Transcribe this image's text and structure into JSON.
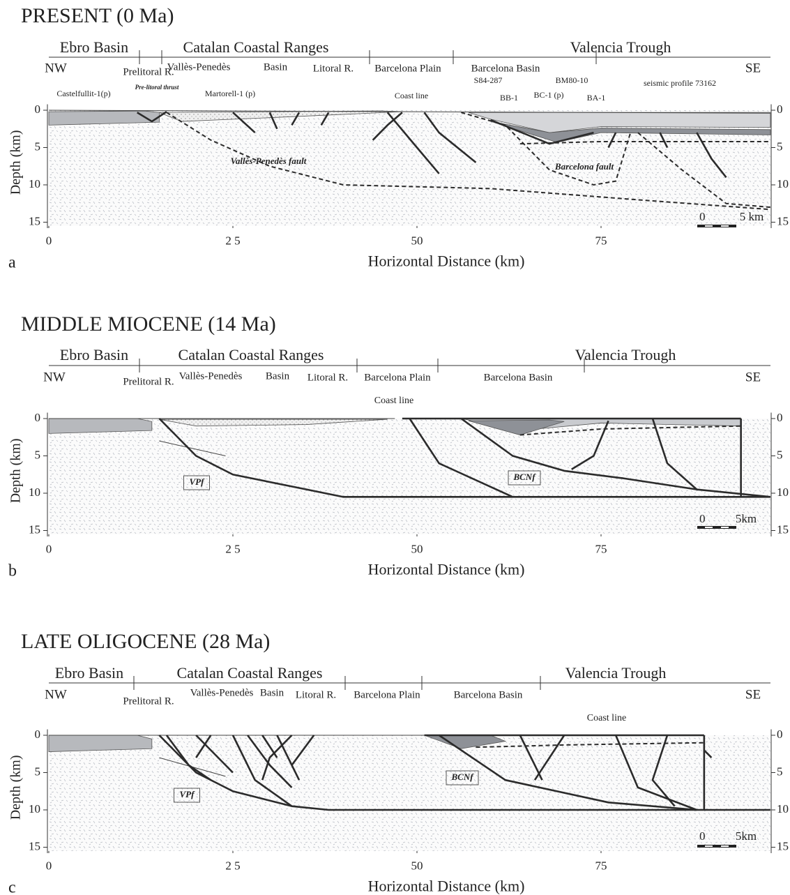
{
  "panels": [
    {
      "label": "a",
      "title": "PRESENT  (0 Ma)",
      "regions": [
        "Ebro Basin",
        "Catalan  Coastal   Ranges",
        "Valencia Trough"
      ],
      "subregions": [
        "NW",
        "Prelitoral R.",
        "Vallès-Penedès",
        "Basin",
        "Litoral R.",
        "Barcelona  Plain",
        "Barcelona   Basin",
        "SE"
      ],
      "annotations": [
        "Castelfullit-1(p)",
        "Pre-litoral thrust",
        "Martorell-1 (p)",
        "Coast  line",
        "S84-287",
        "BM80-10",
        "seismic  profile 73162",
        "BB-1",
        "BC-1 (p)",
        "BA-1",
        "Vallès-Penedès fault",
        "Barcelona fault"
      ],
      "scale_bar": [
        "0",
        "5 km"
      ],
      "y_axis_title": "Depth (km)",
      "x_axis_title": "Horizontal Distance (km)",
      "yticks": [
        0,
        5,
        10,
        15
      ],
      "xticks": [
        0,
        {
          "value": 25,
          "label": "2 5"
        },
        50,
        75
      ]
    },
    {
      "label": "b",
      "title": "MIDDLE MIOCENE (14 Ma)",
      "regions": [
        "Ebro Basin",
        "Catalan  Coastal   Ranges",
        "Valencia Trough"
      ],
      "subregions": [
        "NW",
        "Prelitoral R.",
        "Vallès-Penedès",
        "Basin",
        "Litoral R.",
        "Barcelona  Plain",
        "Barcelona  Basin",
        "SE"
      ],
      "annotations": [
        "Coast line",
        "VPf",
        "BCNf"
      ],
      "scale_bar": [
        "0",
        "5km"
      ],
      "y_axis_title": "Depth (km)",
      "x_axis_title": "Horizontal Distance (km)",
      "yticks": [
        0,
        5,
        10,
        15
      ],
      "xticks": [
        0,
        {
          "value": 25,
          "label": "2 5"
        },
        50,
        75
      ]
    },
    {
      "label": "c",
      "title": "LATE OLIGOCENE (28 Ma)",
      "regions": [
        "Ebro Basin",
        "Catalan  Coastal   Ranges",
        "Valencia  Trough"
      ],
      "subregions": [
        "NW",
        "Prelitoral R.",
        "Vallès-Penedès",
        "Basin",
        "Litoral R.",
        "Barcelona  Plain",
        "Barcelona  Basin",
        "SE"
      ],
      "annotations": [
        "Coast line",
        "VPf",
        "BCNf"
      ],
      "scale_bar": [
        "0",
        "5km"
      ],
      "y_axis_title": "Depth (km)",
      "x_axis_title": "Horizontal Distance (km)",
      "yticks": [
        0,
        5,
        10,
        15
      ],
      "xticks": [
        0,
        {
          "value": 25,
          "label": "2 5"
        },
        50,
        75
      ]
    }
  ]
}
